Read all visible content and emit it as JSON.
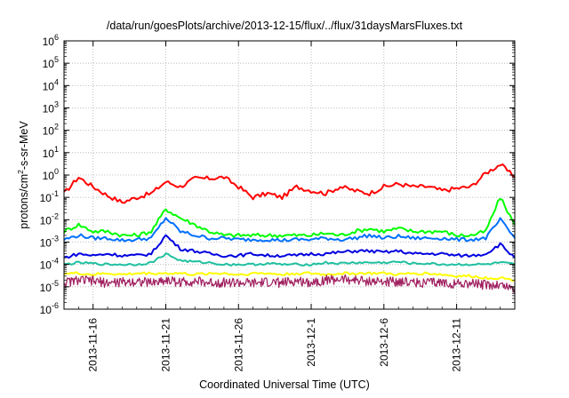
{
  "chart_data": {
    "type": "line",
    "title": "/data/run/goesPlots/archive/2013-12-15/flux/../flux/31daysMarsFluxes.txt",
    "xlabel": "Coordinated Universal Time (UTC)",
    "ylabel": "protons/cm²-s-sr-MeV",
    "ylabel_parts": [
      "protons/cm",
      "2",
      "-s-sr-MeV"
    ],
    "yscale": "log",
    "ylim_exp": [
      -6,
      6
    ],
    "ytick_exponents": [
      "-6",
      "-5",
      "-4",
      "-3",
      "-2",
      "-1",
      "0",
      "1",
      "2",
      "3",
      "4",
      "5",
      "6"
    ],
    "ytick_base": "10",
    "x_range": [
      "2013-11-14",
      "2013-12-15"
    ],
    "xtick_labels": [
      "2013-11-16",
      "2013-11-21",
      "2013-11-26",
      "2013-12-1",
      "2013-12-6",
      "2013-12-11"
    ],
    "xtick_day_offsets": [
      2,
      7,
      12,
      17,
      22,
      27
    ],
    "x_span_days": 31,
    "grid": true,
    "legend": "none",
    "series": [
      {
        "color": "#ff0000",
        "x": [
          0,
          1,
          2,
          3,
          4,
          5,
          6,
          7,
          8,
          9,
          10,
          11,
          12,
          13,
          14,
          15,
          16,
          17,
          18,
          19,
          20,
          21,
          22,
          23,
          24,
          25,
          26,
          27,
          28,
          29,
          30,
          31
        ],
        "y": [
          0.15,
          0.8,
          0.3,
          0.12,
          0.06,
          0.1,
          0.15,
          0.5,
          0.3,
          0.7,
          0.7,
          0.8,
          0.3,
          0.1,
          0.15,
          0.1,
          0.3,
          0.2,
          0.15,
          0.3,
          0.2,
          0.15,
          0.3,
          0.4,
          0.3,
          0.3,
          0.2,
          0.25,
          0.3,
          1.2,
          3,
          0.8
        ]
      },
      {
        "color": "#00ff00",
        "x": [
          0,
          1,
          2,
          3,
          4,
          5,
          6,
          7,
          8,
          9,
          10,
          11,
          12,
          13,
          14,
          15,
          16,
          17,
          18,
          19,
          20,
          21,
          22,
          23,
          24,
          25,
          26,
          27,
          28,
          29,
          30,
          31
        ],
        "y": [
          0.003,
          0.006,
          0.003,
          0.003,
          0.002,
          0.002,
          0.003,
          0.03,
          0.012,
          0.006,
          0.003,
          0.002,
          0.002,
          0.002,
          0.002,
          0.002,
          0.002,
          0.002,
          0.0025,
          0.002,
          0.003,
          0.004,
          0.003,
          0.004,
          0.003,
          0.003,
          0.003,
          0.002,
          0.002,
          0.003,
          0.1,
          0.006
        ]
      },
      {
        "color": "#0070ff",
        "x": [
          0,
          1,
          2,
          3,
          4,
          5,
          6,
          7,
          8,
          9,
          10,
          11,
          12,
          13,
          14,
          15,
          16,
          17,
          18,
          19,
          20,
          21,
          22,
          23,
          24,
          25,
          26,
          27,
          28,
          29,
          30,
          31
        ],
        "y": [
          0.0013,
          0.002,
          0.0015,
          0.0015,
          0.0012,
          0.0013,
          0.0015,
          0.012,
          0.003,
          0.002,
          0.0015,
          0.0015,
          0.0013,
          0.0013,
          0.0013,
          0.0012,
          0.0013,
          0.0013,
          0.0015,
          0.0013,
          0.0015,
          0.002,
          0.0015,
          0.0018,
          0.0015,
          0.0015,
          0.0015,
          0.0013,
          0.0013,
          0.0015,
          0.01,
          0.0015
        ]
      },
      {
        "color": "#0000e0",
        "x": [
          0,
          1,
          2,
          3,
          4,
          5,
          6,
          7,
          8,
          9,
          10,
          11,
          12,
          13,
          14,
          15,
          16,
          17,
          18,
          19,
          20,
          21,
          22,
          23,
          24,
          25,
          26,
          27,
          28,
          29,
          30,
          31
        ],
        "y": [
          0.0002,
          0.0003,
          0.00025,
          0.0003,
          0.00025,
          0.00025,
          0.0003,
          0.002,
          0.0005,
          0.0004,
          0.0003,
          0.00025,
          0.00025,
          0.0003,
          0.00025,
          0.00025,
          0.00025,
          0.0003,
          0.0003,
          0.00035,
          0.0004,
          0.0004,
          0.00035,
          0.0004,
          0.0003,
          0.0003,
          0.0003,
          0.00025,
          0.00025,
          0.0003,
          0.0008,
          0.0002
        ]
      },
      {
        "color": "#20c0a0",
        "x": [
          0,
          1,
          2,
          3,
          4,
          5,
          6,
          7,
          8,
          9,
          10,
          11,
          12,
          13,
          14,
          15,
          16,
          17,
          18,
          19,
          20,
          21,
          22,
          23,
          24,
          25,
          26,
          27,
          28,
          29,
          30,
          31
        ],
        "y": [
          0.0001,
          0.00012,
          0.00011,
          0.0001,
          0.0001,
          0.0001,
          0.00012,
          0.0003,
          0.00015,
          0.00013,
          0.00012,
          0.0001,
          0.0001,
          0.0001,
          0.00011,
          0.0001,
          0.0001,
          0.0001,
          0.00012,
          0.00011,
          0.00012,
          0.00012,
          0.00012,
          0.00013,
          0.00011,
          0.00011,
          0.0001,
          0.0001,
          0.0001,
          0.0001,
          0.00012,
          0.0001
        ]
      },
      {
        "color": "#ffff00",
        "x": [
          0,
          1,
          2,
          3,
          4,
          5,
          6,
          7,
          8,
          9,
          10,
          11,
          12,
          13,
          14,
          15,
          16,
          17,
          18,
          19,
          20,
          21,
          22,
          23,
          24,
          25,
          26,
          27,
          28,
          29,
          30,
          31
        ],
        "y": [
          4e-05,
          4e-05,
          3.5e-05,
          4e-05,
          3.5e-05,
          4e-05,
          4e-05,
          4e-05,
          4e-05,
          3.5e-05,
          4e-05,
          4e-05,
          3.5e-05,
          4e-05,
          4e-05,
          3.5e-05,
          4e-05,
          4e-05,
          3.5e-05,
          4e-05,
          4e-05,
          4e-05,
          4e-05,
          3.5e-05,
          4e-05,
          4e-05,
          3.5e-05,
          3e-05,
          3e-05,
          2.5e-05,
          2.5e-05,
          2e-05
        ]
      },
      {
        "color": "#a02060",
        "x": [
          0,
          1,
          2,
          3,
          4,
          5,
          6,
          7,
          8,
          9,
          10,
          11,
          12,
          13,
          14,
          15,
          16,
          17,
          18,
          19,
          20,
          21,
          22,
          23,
          24,
          25,
          26,
          27,
          28,
          29,
          30,
          31
        ],
        "y": [
          1.5e-05,
          2e-05,
          1.8e-05,
          1.5e-05,
          1.6e-05,
          1.8e-05,
          1.5e-05,
          2e-05,
          1.6e-05,
          1.8e-05,
          1.5e-05,
          1.6e-05,
          1.5e-05,
          1.4e-05,
          1.6e-05,
          1.5e-05,
          1.8e-05,
          1.6e-05,
          2e-05,
          2.2e-05,
          2e-05,
          1.8e-05,
          1.6e-05,
          1.8e-05,
          1.6e-05,
          1.5e-05,
          1.5e-05,
          1.4e-05,
          1.4e-05,
          1.2e-05,
          1.2e-05,
          8e-06
        ]
      }
    ]
  }
}
